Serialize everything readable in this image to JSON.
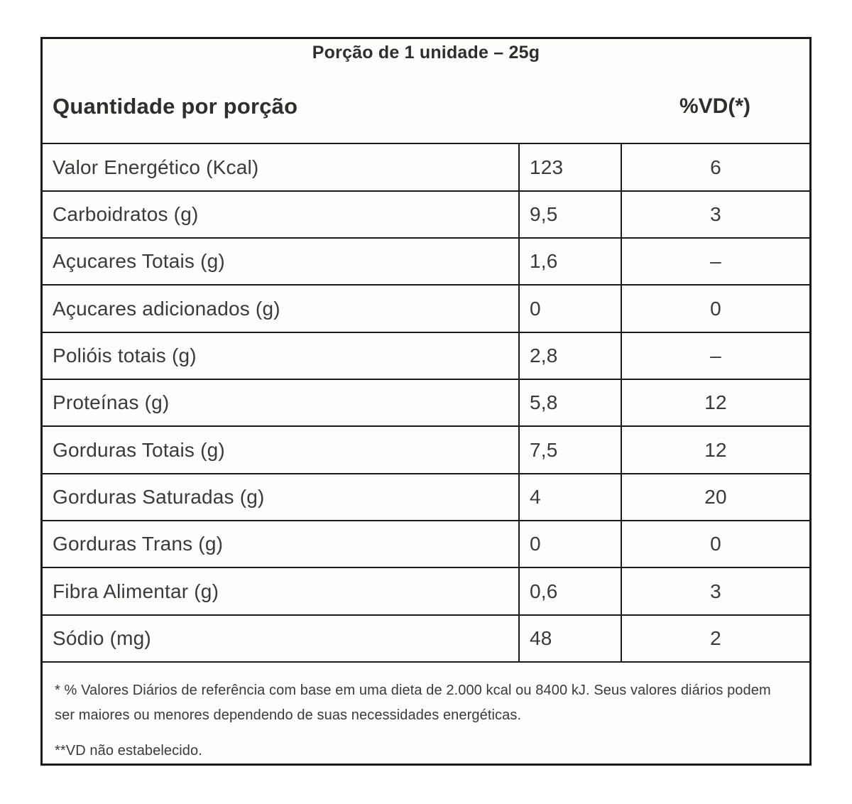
{
  "table": {
    "title": "Porção de 1 unidade – 25g",
    "header": {
      "quantity_label": "Quantidade por porção",
      "dv_label": "%VD(*)"
    },
    "rows": [
      {
        "nutrient": "Valor Energético (Kcal)",
        "amount": "123",
        "dv": "6"
      },
      {
        "nutrient": "Carboidratos (g)",
        "amount": "9,5",
        "dv": "3"
      },
      {
        "nutrient": "Açucares Totais (g)",
        "amount": "1,6",
        "dv": "–"
      },
      {
        "nutrient": "Açucares adicionados (g)",
        "amount": "0",
        "dv": "0"
      },
      {
        "nutrient": "Polióis totais (g)",
        "amount": "2,8",
        "dv": "–"
      },
      {
        "nutrient": "Proteínas (g)",
        "amount": "5,8",
        "dv": "12"
      },
      {
        "nutrient": "Gorduras Totais (g)",
        "amount": "7,5",
        "dv": "12"
      },
      {
        "nutrient": "Gorduras Saturadas (g)",
        "amount": "4",
        "dv": "20"
      },
      {
        "nutrient": "Gorduras Trans (g)",
        "amount": "0",
        "dv": "0"
      },
      {
        "nutrient": "Fibra Alimentar (g)",
        "amount": "0,6",
        "dv": "3"
      },
      {
        "nutrient": "Sódio (mg)",
        "amount": "48",
        "dv": "2"
      }
    ],
    "footnotes": {
      "daily_values": "* % Valores Diários de referência com base em uma dieta de 2.000 kcal ou 8400 kJ. Seus valores diários podem ser maiores ou menores dependendo de suas necessidades energéticas.",
      "not_established": "**VD não estabelecido."
    }
  },
  "colors": {
    "border": "#1b1b1b",
    "text": "#3a3a3a",
    "heading_text": "#2e2e2e",
    "background": "#ffffff"
  }
}
